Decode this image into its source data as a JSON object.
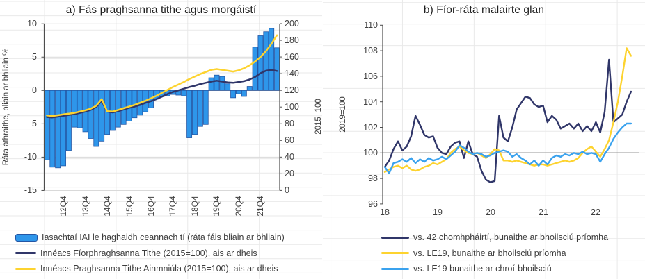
{
  "colors": {
    "bar_fill": "#2e96ea",
    "bar_border": "#2456a4",
    "navy": "#303669",
    "yellow": "#fdd32f",
    "light_blue": "#3aa2ee",
    "gridline": "#d9d9d9",
    "sheet_grid": "#e9e9e9",
    "axis": "#4d4d4d",
    "zero_line": "#595959",
    "text": "#404040",
    "title_text": "#1f1f1f"
  },
  "panel_a": {
    "title": "a) Fás praghsanna tithe agus morgáistí",
    "y_left_title": "Ráta athraithe, bliain ar bhliain %",
    "y_right_title": "2015=100",
    "y_left_ticks": [
      "10",
      "5",
      "0",
      "-5",
      "-10",
      "-15"
    ],
    "y_right_ticks": [
      "200",
      "180",
      "160",
      "140",
      "120",
      "100",
      "80",
      "60",
      "40",
      "20",
      "0"
    ],
    "x_tick_labels": [
      "12Q4",
      "13Q4",
      "14Q4",
      "15Q4",
      "16Q4",
      "17Q4",
      "18Q4",
      "19Q4",
      "20Q4",
      "21Q4"
    ],
    "legend": [
      {
        "label": "Iasachtaí IAI le haghaidh ceannach tí (ráta fáis bliain ar bhliain)",
        "swatch": "bar",
        "color_key": "bar_fill"
      },
      {
        "label": "Innéacs Fíorphraghsanna Tithe (2015=100), ais ar dheis",
        "swatch": "line",
        "color_key": "navy"
      },
      {
        "label": "Innéacs Praghsanna Tithe Ainmniúla (2015=100), ais ar dheis",
        "swatch": "line",
        "color_key": "yellow"
      }
    ]
  },
  "panel_b": {
    "title": "b) Fíor-ráta malairte glan",
    "y_title": "2019=100",
    "y_ticks": [
      "110",
      "108",
      "106",
      "104",
      "102",
      "100",
      "98",
      "96"
    ],
    "x_tick_labels": [
      "18",
      "19",
      "20",
      "21",
      "22"
    ],
    "legend": [
      {
        "label": "vs. 42 chomhpháirtí, bunaithe ar bhoilsciú príomha",
        "swatch": "line",
        "color_key": "navy"
      },
      {
        "label": "vs. LE19, bunaithe ar bhoilsciú príomha",
        "swatch": "line",
        "color_key": "yellow"
      },
      {
        "label": "vs. LE19 bunaithe ar chroí-bhoilsciú",
        "swatch": "line",
        "color_key": "light_blue"
      }
    ]
  },
  "chart_data": [
    {
      "type": "bar",
      "subtype": "bar+line combo, quarterly",
      "title": "a) Fás praghsanna tithe agus morgáistí",
      "xlabel": "",
      "ylabel_left": "Ráta athraithe, bliain ar bhliain %",
      "ylabel_right": "2015=100",
      "ylim_left": [
        -15,
        10
      ],
      "ylim_right": [
        0,
        200
      ],
      "grid": "horizontal",
      "legend_position": "bottom-left",
      "categories": [
        "12Q1",
        "12Q2",
        "12Q3",
        "12Q4",
        "13Q1",
        "13Q2",
        "13Q3",
        "13Q4",
        "14Q1",
        "14Q2",
        "14Q3",
        "14Q4",
        "15Q1",
        "15Q2",
        "15Q3",
        "15Q4",
        "16Q1",
        "16Q2",
        "16Q3",
        "16Q4",
        "17Q1",
        "17Q2",
        "17Q3",
        "17Q4",
        "18Q1",
        "18Q2",
        "18Q3",
        "18Q4",
        "19Q1",
        "19Q2",
        "19Q3",
        "19Q4",
        "20Q1",
        "20Q2",
        "20Q3",
        "20Q4",
        "21Q1",
        "21Q2",
        "21Q3",
        "21Q4",
        "22Q1",
        "22Q2",
        "22Q3"
      ],
      "bar_series": {
        "name": "Iasachtaí IAI le haghaidh ceannach tí (ráta fáis bliain ar bhliain)",
        "axis": "left",
        "values": [
          -10.4,
          -11.5,
          -11.6,
          -11.3,
          -9.0,
          -5.5,
          -5.6,
          -6.2,
          -7.2,
          -8.4,
          -7.6,
          -6.6,
          -6.0,
          -5.5,
          -5.1,
          -4.6,
          -4.1,
          -3.7,
          -3.2,
          -2.6,
          -1.3,
          -0.9,
          -0.8,
          -0.6,
          -0.7,
          -0.8,
          -7.1,
          -6.6,
          -5.4,
          -5.1,
          1.9,
          2.3,
          2.1,
          1.0,
          -1.1,
          -0.5,
          -0.9,
          0.6,
          6.5,
          8.2,
          8.8,
          9.3,
          6.4
        ]
      },
      "line_series": [
        {
          "name": "Innéacs Fíorphraghsanna Tithe (2015=100), ais ar dheis",
          "axis": "right",
          "color_key": "navy",
          "values": [
            88,
            87.5,
            88.5,
            89.5,
            90.5,
            91.5,
            93,
            94.5,
            96.5,
            100,
            107.5,
            94.5,
            93.5,
            95,
            97,
            99,
            100.5,
            102.5,
            105,
            107,
            109.5,
            112.5,
            115.5,
            118,
            120,
            122,
            124,
            125.5,
            127.5,
            129,
            130.5,
            131.5,
            130.5,
            129.5,
            129,
            130,
            131,
            133,
            136,
            140.5,
            143.5,
            144.5,
            143.2
          ]
        },
        {
          "name": "Innéacs Praghsanna Tithe Ainmniúla (2015=100), ais ar dheis",
          "axis": "right",
          "color_key": "yellow",
          "values": [
            90,
            89.3,
            90.2,
            91.2,
            92,
            93,
            94.5,
            96,
            98,
            101.5,
            109.5,
            95,
            94.5,
            96.5,
            98.5,
            100.5,
            102.5,
            105,
            107.5,
            110.5,
            113.5,
            117,
            120.5,
            124,
            127,
            130,
            133.5,
            136.5,
            139.5,
            142,
            144.5,
            145.5,
            144.5,
            143.5,
            142.5,
            144,
            146.5,
            150,
            154.5,
            160,
            167,
            176,
            186
          ]
        }
      ]
    },
    {
      "type": "line",
      "subtype": "monthly, Jan 2018 - Sep 2022",
      "title": "b) Fíor-ráta malairte glan",
      "xlabel": "",
      "ylabel": "2019=100",
      "ylim": [
        96,
        110
      ],
      "baseline": 100,
      "grid": "horizontal-sheet-only",
      "legend_position": "bottom",
      "x_start": "2018-01",
      "x_frequency": "monthly",
      "x_tick_labels": [
        "18",
        "19",
        "20",
        "21",
        "22"
      ],
      "series": [
        {
          "name": "vs. 42 chomhpháirtí, bunaithe ar bhoilsciú príomha",
          "color_key": "navy",
          "values": [
            98.9,
            99.4,
            100.3,
            100.9,
            100.2,
            100.5,
            101.3,
            102.9,
            102.2,
            101.4,
            101.2,
            101.3,
            100.4,
            100.0,
            99.9,
            100.5,
            100.8,
            100.9,
            99.6,
            100.9,
            99.9,
            99.7,
            98.6,
            97.9,
            97.7,
            97.8,
            102.9,
            101.2,
            100.9,
            102.0,
            103.4,
            103.9,
            104.4,
            104.3,
            103.8,
            103.6,
            103.7,
            102.4,
            102.9,
            102.6,
            101.9,
            102.1,
            102.3,
            101.9,
            102.3,
            101.7,
            102.1,
            101.7,
            102.4,
            101.6,
            103.2,
            107.3,
            102.4,
            102.7,
            103.0,
            104.0,
            104.8
          ]
        },
        {
          "name": "vs. LE19, bunaithe ar bhoilsciú príomha",
          "color_key": "yellow",
          "values": [
            98.5,
            98.7,
            98.9,
            99.0,
            98.8,
            99.0,
            98.7,
            98.6,
            98.7,
            98.9,
            99.0,
            99.2,
            99.1,
            99.3,
            99.5,
            100.0,
            100.3,
            100.5,
            100.2,
            100.0,
            99.9,
            100.0,
            99.8,
            99.6,
            99.9,
            100.3,
            100.2,
            99.4,
            99.4,
            99.3,
            99.4,
            99.3,
            99.2,
            99.1,
            99.0,
            99.1,
            99.1,
            99.0,
            99.1,
            99.2,
            99.3,
            99.4,
            99.3,
            99.4,
            99.6,
            100.0,
            100.3,
            100.5,
            100.1,
            99.7,
            100.3,
            101.0,
            102.4,
            104.0,
            106.0,
            108.2,
            107.6
          ]
        },
        {
          "name": "vs. LE19 bunaithe ar chroí-bhoilsciú",
          "color_key": "light_blue",
          "values": [
            98.9,
            98.4,
            99.2,
            99.3,
            99.5,
            99.3,
            99.6,
            99.2,
            99.5,
            99.3,
            99.6,
            99.4,
            99.5,
            99.7,
            99.5,
            99.8,
            100.1,
            100.6,
            100.4,
            100.1,
            99.9,
            100.0,
            99.9,
            99.7,
            99.8,
            100.0,
            100.1,
            100.2,
            100.1,
            99.7,
            99.9,
            99.6,
            99.4,
            99.1,
            99.4,
            99.0,
            99.4,
            99.1,
            99.6,
            99.8,
            99.7,
            99.9,
            99.8,
            100.0,
            99.9,
            100.1,
            99.9,
            100.0,
            99.9,
            99.3,
            99.9,
            100.4,
            101.1,
            101.6,
            102.0,
            102.3,
            102.3
          ]
        }
      ]
    }
  ]
}
